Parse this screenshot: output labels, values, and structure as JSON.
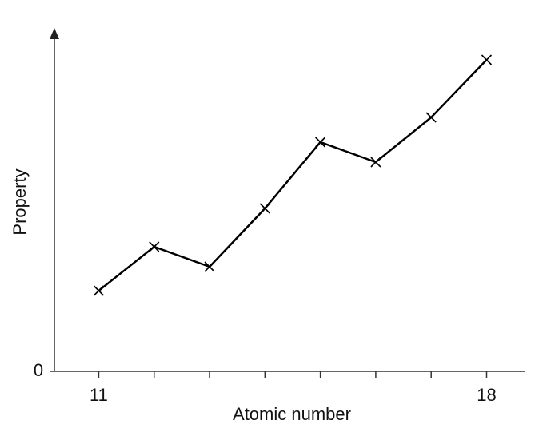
{
  "chart_data": {
    "type": "line",
    "x_label": "Atomic number",
    "y_label": "Property",
    "x": [
      11,
      12,
      13,
      14,
      15,
      16,
      17,
      18
    ],
    "values": [
      101,
      156,
      131,
      204,
      287,
      262,
      318,
      390
    ],
    "color": "#000000",
    "xlim": [
      10.2,
      18.7
    ],
    "xticks": [
      11,
      18
    ],
    "ylim": [
      0,
      430
    ],
    "yticks": [
      0
    ]
  }
}
